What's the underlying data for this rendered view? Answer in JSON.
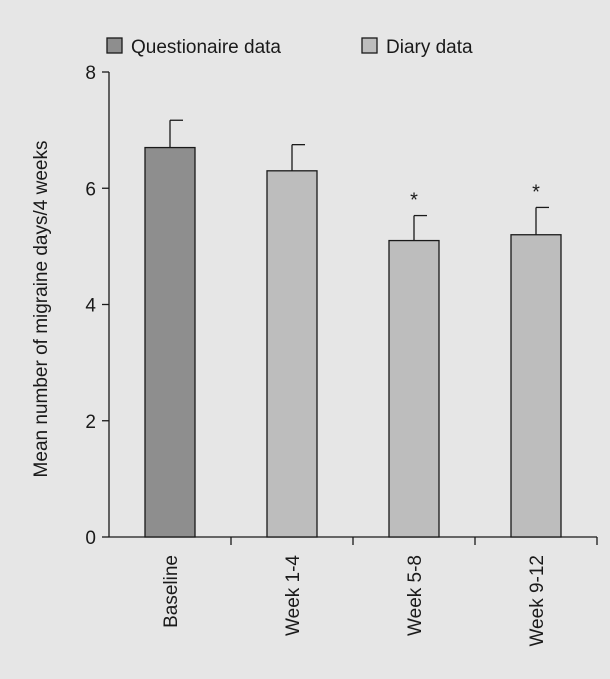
{
  "chart_data": {
    "type": "bar",
    "ylabel": "Mean number of migraine days/4 weeks",
    "ylim": [
      0,
      8
    ],
    "yticks": [
      0,
      2,
      4,
      6,
      8
    ],
    "grid": false,
    "legend_position": "top",
    "categories": [
      "Baseline",
      "Week 1-4",
      "Week 5-8",
      "Week 9-12"
    ],
    "values": [
      6.7,
      6.3,
      5.1,
      5.2
    ],
    "error_upper": [
      0.47,
      0.45,
      0.43,
      0.47
    ],
    "significance": [
      "",
      "",
      "*",
      "*"
    ],
    "bar_series": [
      "Questionaire data",
      "Diary data",
      "Diary data",
      "Diary data"
    ],
    "series": [
      {
        "name": "Questionaire data",
        "color": "#8e8e8e"
      },
      {
        "name": "Diary data",
        "color": "#bdbdbd"
      }
    ]
  }
}
